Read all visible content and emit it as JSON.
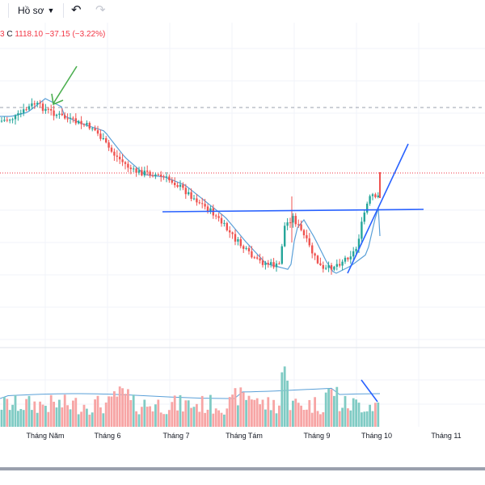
{
  "toolbar": {
    "profile_label": "Hồ sơ",
    "profile_icon": "chevron-down-icon",
    "undo_icon": "undo-icon",
    "redo_icon": "redo-icon"
  },
  "legend": {
    "prefix": "3",
    "close_key": "C",
    "close_value": "1118.10",
    "change": "−37.15",
    "change_pct": "(−3.22%)"
  },
  "colors": {
    "up": "#26a69a",
    "down": "#ef5350",
    "ma": "#5aa0d8",
    "trendline": "#2962ff",
    "annotation_arrow": "#4caf50"
  },
  "chart_data": {
    "type": "candlestick",
    "x_labels": [
      "Tháng Năm",
      "Tháng 6",
      "Tháng 7",
      "Tháng Tám",
      "Tháng 9",
      "Tháng 10",
      "Tháng 11"
    ],
    "grid": true,
    "reference_lines": [
      "dashed-gray",
      "dotted-red"
    ],
    "series": [
      {
        "name": "",
        "description": "price",
        "last_close": 1118.1,
        "change": -37.15,
        "change_pct": -3.22
      },
      {
        "name": "",
        "description": "moving average overlay"
      },
      {
        "name": "",
        "description": "volume bars with volume moving average"
      }
    ]
  }
}
